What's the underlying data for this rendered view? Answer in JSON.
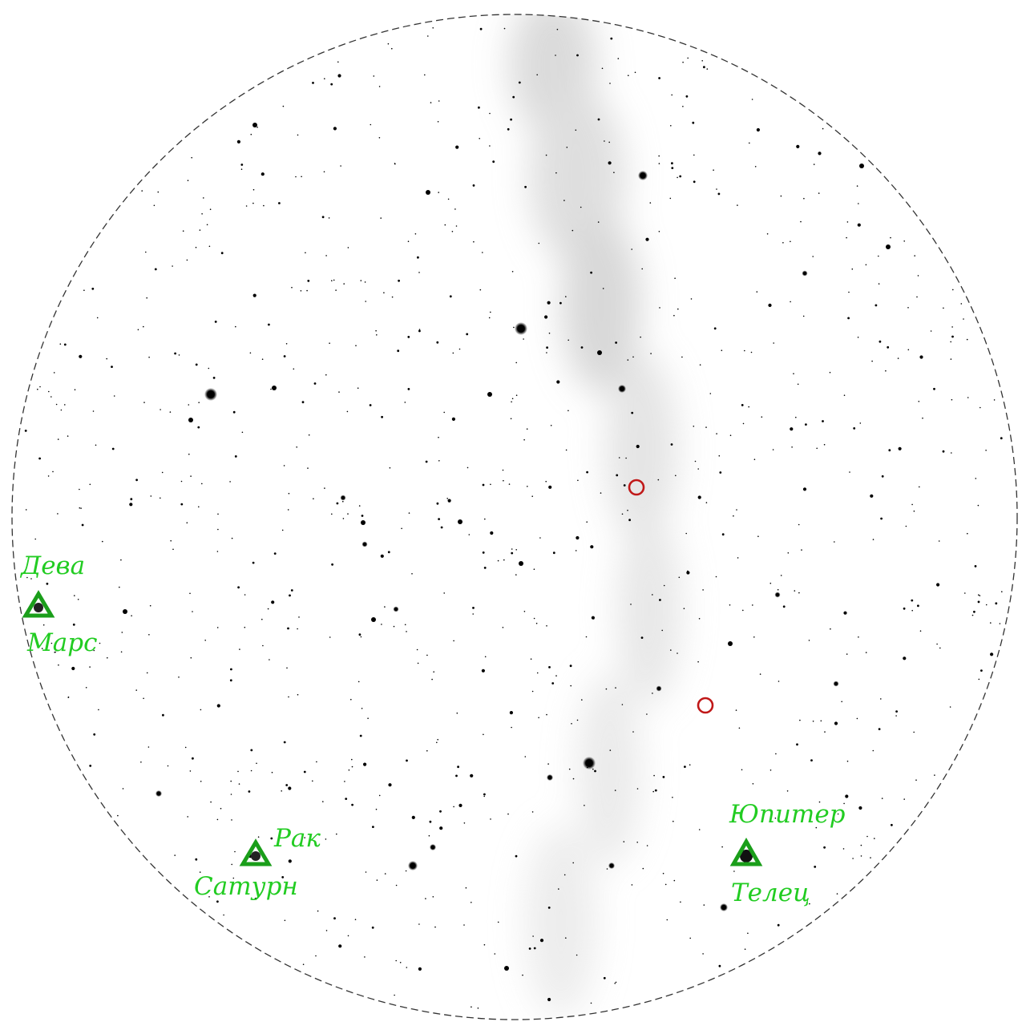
{
  "colors": {
    "background": "#ffffff",
    "star": "#000000",
    "milky_way": "#d9d9d9",
    "horizon": "#333333",
    "planet_marker": "#1a9e1a",
    "planet_label": "#22cc22",
    "highlight_ring": "#c01818"
  },
  "planets": [
    {
      "name": "Марс",
      "constellation": "Дева"
    },
    {
      "name": "Сатурн",
      "constellation": "Рак"
    },
    {
      "name": "Юпитер",
      "constellation": "Телец"
    }
  ],
  "highlighted_objects_count": 2
}
